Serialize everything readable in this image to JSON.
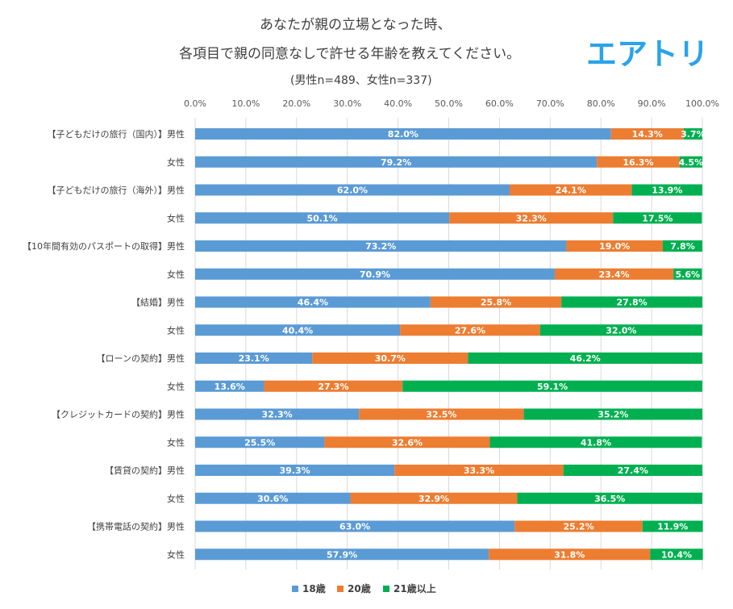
{
  "title_line1": "あなたが親の立場となった時、",
  "title_line2": "各項目で親の同意なしで許せる年齢を教えてください。",
  "subtitle": "(男性n=489、女性n=337)",
  "brand_logo": "エアトリ",
  "colors": {
    "18": "#5b9bd5",
    "20": "#ed7d31",
    "21": "#00b050",
    "logo": "#2aa3e8"
  },
  "chart_data": {
    "type": "bar",
    "orientation": "horizontal",
    "stacked": "100%",
    "title": "あなたが親の立場となった時、各項目で親の同意なしで許せる年齢を教えてください。",
    "subtitle": "(男性n=489、女性n=337)",
    "x_ticks": [
      "0.0%",
      "10.0%",
      "20.0%",
      "30.0%",
      "40.0%",
      "50.0%",
      "60.0%",
      "70.0%",
      "80.0%",
      "90.0%",
      "100.0%"
    ],
    "xlim": [
      0,
      100
    ],
    "grid": true,
    "legend_position": "bottom",
    "categories": [
      "【子どもだけの旅行（国内）】男性",
      "女性",
      "【子どもだけの旅行（海外）】男性",
      "女性",
      "【10年間有効のパスポートの取得】男性",
      "女性",
      "【結婚】男性",
      "女性",
      "【ローンの契約】男性",
      "女性",
      "【クレジットカードの契約】男性",
      "女性",
      "【賃貸の契約】男性",
      "女性",
      "【携帯電話の契約】男性",
      "女性"
    ],
    "series": [
      {
        "name": "18歳",
        "color": "#5b9bd5",
        "values": [
          82.0,
          79.2,
          62.0,
          50.1,
          73.2,
          70.9,
          46.4,
          40.4,
          23.1,
          13.6,
          32.3,
          25.5,
          39.3,
          30.6,
          63.0,
          57.9
        ]
      },
      {
        "name": "20歳",
        "color": "#ed7d31",
        "values": [
          14.3,
          16.3,
          24.1,
          32.3,
          19.0,
          23.4,
          25.8,
          27.6,
          30.7,
          27.3,
          32.5,
          32.6,
          33.3,
          32.9,
          25.2,
          31.8
        ]
      },
      {
        "name": "21歳以上",
        "color": "#00b050",
        "values": [
          3.7,
          4.5,
          13.9,
          17.5,
          7.8,
          5.6,
          27.8,
          32.0,
          46.2,
          59.1,
          35.2,
          41.8,
          27.4,
          36.5,
          11.9,
          10.4
        ]
      }
    ]
  }
}
